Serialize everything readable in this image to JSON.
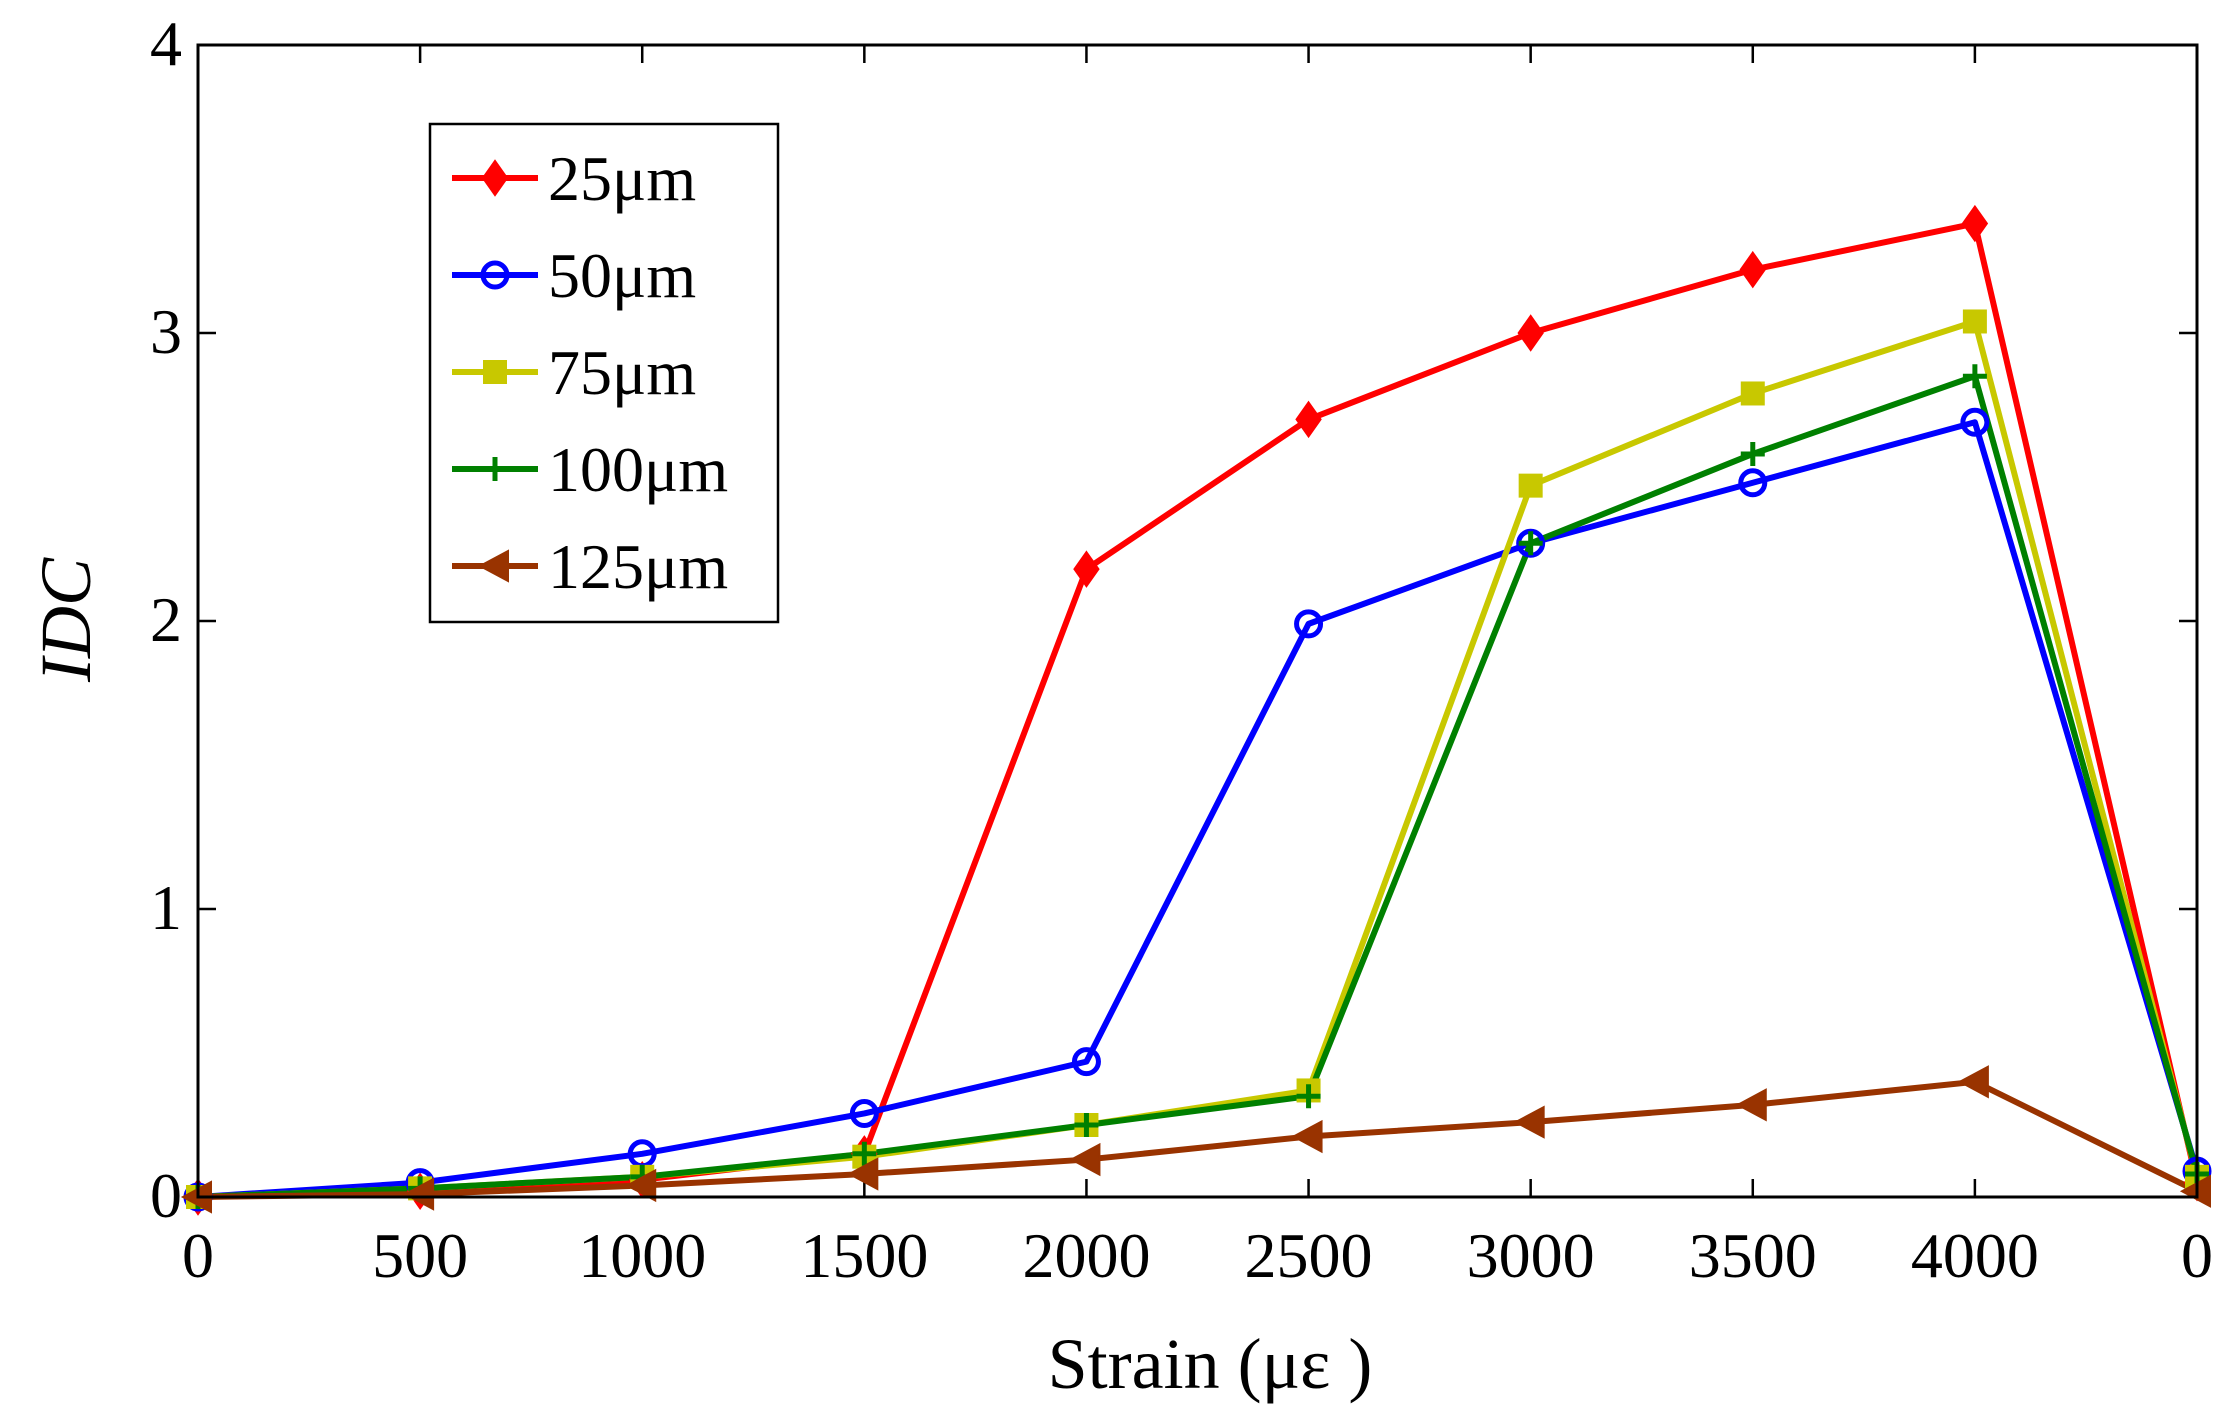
{
  "chart_data": {
    "type": "line",
    "title": "",
    "xlabel": "Strain (με )",
    "ylabel": "IDC",
    "categories": [
      "0",
      "500",
      "1000",
      "1500",
      "2000",
      "2500",
      "3000",
      "3500",
      "4000",
      "0"
    ],
    "y_ticks": [
      "0",
      "1",
      "2",
      "3",
      "4"
    ],
    "ylim": [
      0,
      4
    ],
    "grid": false,
    "legend_position": "top-left",
    "series": [
      {
        "name": "25μm",
        "color": "#ff0000",
        "marker": "diamond",
        "values": [
          0.0,
          0.02,
          0.06,
          0.15,
          2.18,
          2.7,
          3.0,
          3.22,
          3.38,
          0.05
        ]
      },
      {
        "name": "50μm",
        "color": "#0000ff",
        "marker": "circle",
        "values": [
          0.0,
          0.05,
          0.15,
          0.29,
          0.47,
          1.99,
          2.27,
          2.48,
          2.69,
          0.09
        ]
      },
      {
        "name": "75μm",
        "color": "#c8c800",
        "marker": "square",
        "values": [
          0.0,
          0.03,
          0.07,
          0.14,
          0.25,
          0.37,
          2.47,
          2.79,
          3.04,
          0.07
        ]
      },
      {
        "name": "100μm",
        "color": "#008000",
        "marker": "plus",
        "values": [
          0.0,
          0.03,
          0.07,
          0.15,
          0.25,
          0.35,
          2.27,
          2.58,
          2.85,
          0.08
        ]
      },
      {
        "name": "125μm",
        "color": "#993300",
        "marker": "triangle-left",
        "values": [
          0.0,
          0.01,
          0.04,
          0.08,
          0.13,
          0.21,
          0.26,
          0.32,
          0.4,
          0.02
        ]
      }
    ]
  }
}
